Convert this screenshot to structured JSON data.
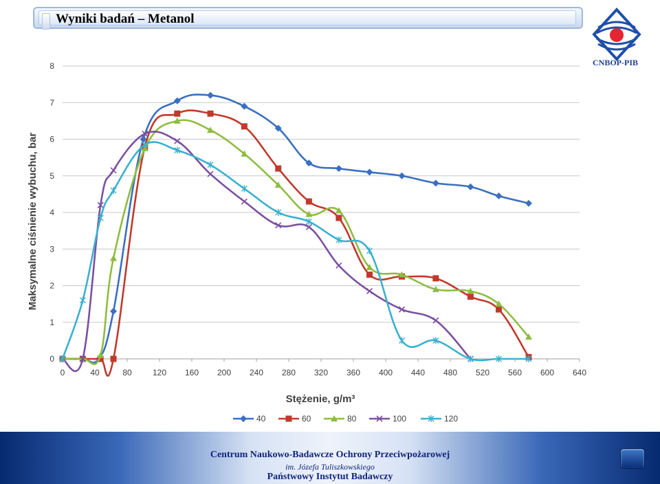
{
  "header": {
    "title": "Wyniki badań – Metanol"
  },
  "logo": {
    "text": "CNBOP-PIB",
    "red": "#e3262f",
    "blue": "#1f4fa8"
  },
  "footer": {
    "line1": "Centrum Naukowo-Badawcze Ochrony Przeciwpożarowej",
    "line2": "im. Józefa Tuliszkowskiego",
    "line3": "Państwowy Instytut Badawczy"
  },
  "chart_data": {
    "type": "line",
    "title": "",
    "xlabel": "Stężenie, g/m³",
    "ylabel": "Maksymalne ciśnienie wybuchu, bar",
    "xlim": [
      0,
      640
    ],
    "ylim": [
      0,
      8
    ],
    "xticks": [
      0,
      40,
      80,
      120,
      160,
      200,
      240,
      280,
      320,
      360,
      400,
      440,
      480,
      520,
      560,
      600,
      640
    ],
    "yticks": [
      0,
      1,
      2,
      3,
      4,
      5,
      6,
      7,
      8
    ],
    "grid": "horizontal",
    "legend_position": "bottom",
    "series": [
      {
        "name": "40",
        "color": "#3a6fbf",
        "marker": "diamond",
        "x": [
          0,
          25,
          45,
          63,
          100,
          142,
          183,
          225,
          267,
          305,
          342,
          380,
          420,
          462,
          505,
          540,
          577
        ],
        "y": [
          0,
          0,
          0,
          1.3,
          6.0,
          7.05,
          7.2,
          6.9,
          6.3,
          5.35,
          5.2,
          5.1,
          5.0,
          4.8,
          4.7,
          4.45,
          4.25
        ]
      },
      {
        "name": "60",
        "color": "#c0392b",
        "marker": "square",
        "x": [
          0,
          25,
          47,
          63,
          102,
          142,
          183,
          225,
          267,
          305,
          342,
          380,
          420,
          462,
          505,
          540,
          577
        ],
        "y": [
          0,
          0,
          0,
          0,
          5.8,
          6.7,
          6.7,
          6.35,
          5.2,
          4.3,
          3.85,
          2.3,
          2.25,
          2.2,
          1.7,
          1.35,
          0.05
        ]
      },
      {
        "name": "80",
        "color": "#8fbc3f",
        "marker": "triangle",
        "x": [
          0,
          25,
          47,
          63,
          102,
          142,
          183,
          225,
          267,
          305,
          342,
          380,
          420,
          462,
          505,
          540,
          577
        ],
        "y": [
          0,
          0,
          0.1,
          2.75,
          5.75,
          6.5,
          6.25,
          5.6,
          4.75,
          3.95,
          4.05,
          2.5,
          2.3,
          1.9,
          1.85,
          1.5,
          0.6
        ]
      },
      {
        "name": "100",
        "color": "#7a4fa0",
        "marker": "x",
        "x": [
          0,
          25,
          47,
          63,
          102,
          142,
          183,
          225,
          267,
          305,
          342,
          380,
          420,
          462,
          505
        ],
        "y": [
          0,
          0,
          4.2,
          5.15,
          6.15,
          5.95,
          5.05,
          4.3,
          3.65,
          3.6,
          2.55,
          1.85,
          1.35,
          1.05,
          0
        ]
      },
      {
        "name": "120",
        "color": "#3bb0d0",
        "marker": "star",
        "x": [
          0,
          25,
          47,
          63,
          102,
          142,
          183,
          225,
          267,
          305,
          342,
          380,
          420,
          462,
          505,
          540,
          577
        ],
        "y": [
          0,
          1.6,
          3.85,
          4.6,
          5.85,
          5.7,
          5.3,
          4.65,
          4.0,
          3.75,
          3.25,
          2.95,
          0.5,
          0.5,
          0,
          0,
          0
        ]
      }
    ]
  }
}
